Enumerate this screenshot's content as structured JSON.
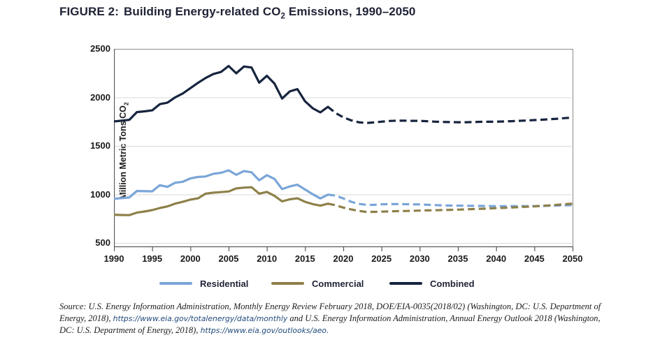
{
  "title": {
    "label": "FIGURE 2:",
    "text_pre": "Building Energy-related CO",
    "text_sub": "2",
    "text_post": " Emissions, 1990–2050",
    "accent_color": "#8db3d7",
    "text_color": "#1e2235"
  },
  "chart_data": {
    "type": "line",
    "title": "Building Energy-related CO2 Emissions, 1990-2050",
    "xlabel": "",
    "ylabel_pre": "Million Metric Tons CO",
    "ylabel_sub": "2",
    "ylim": [
      500,
      2500
    ],
    "yticks": [
      500,
      1000,
      1500,
      2000,
      2500
    ],
    "xticks": [
      1990,
      1995,
      2000,
      2005,
      2010,
      2015,
      2020,
      2025,
      2030,
      2035,
      2040,
      2045,
      2050
    ],
    "grid": "horizontal",
    "legend_position": "bottom",
    "history_end_year": 2018,
    "projection_style": "dashed",
    "grid_color": "#d9d9d9",
    "axis_color": "#595959",
    "border_color": "#8c8c8c",
    "x": [
      1990,
      1991,
      1992,
      1993,
      1994,
      1995,
      1996,
      1997,
      1998,
      1999,
      2000,
      2001,
      2002,
      2003,
      2004,
      2005,
      2006,
      2007,
      2008,
      2009,
      2010,
      2011,
      2012,
      2013,
      2014,
      2015,
      2016,
      2017,
      2018,
      2019,
      2020,
      2021,
      2022,
      2023,
      2024,
      2025,
      2026,
      2027,
      2028,
      2029,
      2030,
      2031,
      2032,
      2033,
      2034,
      2035,
      2036,
      2037,
      2038,
      2039,
      2040,
      2041,
      2042,
      2043,
      2044,
      2045,
      2046,
      2047,
      2048,
      2049,
      2050
    ],
    "series": [
      {
        "name": "Residential",
        "color": "#7aa5d8",
        "values": [
          955,
          962,
          968,
          1035,
          1033,
          1032,
          1095,
          1078,
          1120,
          1130,
          1165,
          1180,
          1185,
          1212,
          1222,
          1248,
          1202,
          1240,
          1228,
          1145,
          1198,
          1160,
          1055,
          1082,
          1100,
          1050,
          1002,
          958,
          998,
          988,
          958,
          925,
          903,
          893,
          892,
          898,
          900,
          900,
          899,
          898,
          897,
          893,
          890,
          887,
          885,
          884,
          883,
          882,
          881,
          880,
          879,
          879,
          879,
          879,
          880,
          880,
          881,
          883,
          885,
          887,
          890
        ]
      },
      {
        "name": "Commercial",
        "color": "#8e8049",
        "values": [
          790,
          788,
          786,
          812,
          824,
          838,
          860,
          876,
          905,
          924,
          946,
          960,
          1008,
          1018,
          1024,
          1030,
          1062,
          1070,
          1074,
          1008,
          1026,
          985,
          928,
          950,
          960,
          924,
          900,
          884,
          904,
          888,
          864,
          846,
          830,
          820,
          820,
          822,
          825,
          827,
          829,
          831,
          833,
          835,
          837,
          839,
          841,
          843,
          846,
          849,
          852,
          855,
          858,
          861,
          865,
          869,
          873,
          877,
          882,
          887,
          893,
          899,
          905
        ]
      },
      {
        "name": "Combined",
        "color": "#17243e",
        "values": [
          1752,
          1760,
          1768,
          1848,
          1856,
          1866,
          1930,
          1945,
          2000,
          2040,
          2095,
          2150,
          2200,
          2240,
          2262,
          2324,
          2248,
          2318,
          2308,
          2152,
          2222,
          2142,
          1988,
          2062,
          2085,
          1960,
          1888,
          1845,
          1902,
          1838,
          1795,
          1764,
          1744,
          1736,
          1742,
          1750,
          1757,
          1760,
          1760,
          1758,
          1758,
          1754,
          1750,
          1747,
          1745,
          1744,
          1744,
          1746,
          1748,
          1749,
          1750,
          1752,
          1755,
          1758,
          1762,
          1766,
          1770,
          1775,
          1780,
          1786,
          1792
        ]
      }
    ]
  },
  "source": {
    "segments": [
      {
        "style": "plain",
        "text": "Source: U.S. Energy Information Administration, Monthly Energy Review February 2018, DOE/EIA-0035(2018/02) (Washington, DC: U.S. Department of Energy, 2018), "
      },
      {
        "style": "link",
        "text": "https://www.eia.gov/totalenergy/data/monthly"
      },
      {
        "style": "plain",
        "text": " and U.S. Energy Information Administration, Annual Energy Outlook 2018 (Washington, DC: U.S. Department of Energy, 2018), "
      },
      {
        "style": "link",
        "text": "https://www.eia.gov/outlooks/aeo."
      }
    ],
    "link_color": "#1e4878"
  }
}
